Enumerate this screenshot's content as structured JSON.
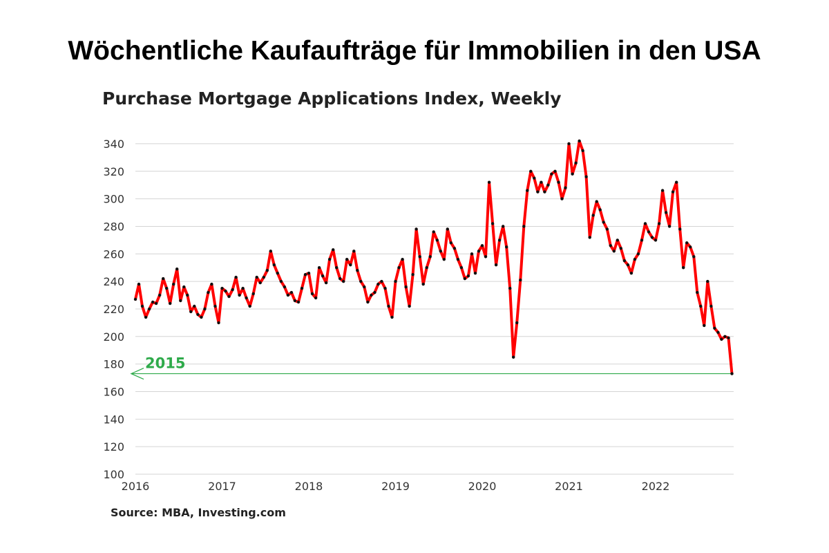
{
  "title": "Wöchentliche Kaufaufträge für Immobilien in den USA",
  "source": "Source: MBA, Investing.com",
  "chart_data": {
    "type": "line",
    "title": "Purchase Mortgage Applications Index, Weekly",
    "xlabel": "",
    "ylabel": "",
    "ylim": [
      100,
      350
    ],
    "xlim": [
      2016,
      2022.9
    ],
    "yticks": [
      100,
      120,
      140,
      160,
      180,
      200,
      220,
      240,
      260,
      280,
      300,
      320,
      340
    ],
    "xticks": [
      2016,
      2017,
      2018,
      2019,
      2020,
      2021,
      2022
    ],
    "grid": "horizontal",
    "colors": {
      "line": "#ff0000",
      "marker": "#111111",
      "reference": "#2eaa4a"
    },
    "reference_line": {
      "label": "2015",
      "y": 173
    },
    "series": [
      {
        "x": [
          2016.0,
          2016.04,
          2016.08,
          2016.12,
          2016.16,
          2016.2,
          2016.24,
          2016.28,
          2016.32,
          2016.36,
          2016.4,
          2016.44,
          2016.48,
          2016.52,
          2016.56,
          2016.6,
          2016.64,
          2016.68,
          2016.72,
          2016.76,
          2016.8,
          2016.84,
          2016.88,
          2016.92,
          2016.96,
          2017.0,
          2017.04,
          2017.08,
          2017.12,
          2017.16,
          2017.2,
          2017.24,
          2017.28,
          2017.32,
          2017.36,
          2017.4,
          2017.44,
          2017.48,
          2017.52,
          2017.56,
          2017.6,
          2017.64,
          2017.68,
          2017.72,
          2017.76,
          2017.8,
          2017.84,
          2017.88,
          2017.92,
          2017.96,
          2018.0,
          2018.04,
          2018.08,
          2018.12,
          2018.16,
          2018.2,
          2018.24,
          2018.28,
          2018.32,
          2018.36,
          2018.4,
          2018.44,
          2018.48,
          2018.52,
          2018.56,
          2018.6,
          2018.64,
          2018.68,
          2018.72,
          2018.76,
          2018.8,
          2018.84,
          2018.88,
          2018.92,
          2018.96,
          2019.0,
          2019.04,
          2019.08,
          2019.12,
          2019.16,
          2019.2,
          2019.24,
          2019.28,
          2019.32,
          2019.36,
          2019.4,
          2019.44,
          2019.48,
          2019.52,
          2019.56,
          2019.6,
          2019.64,
          2019.68,
          2019.72,
          2019.76,
          2019.8,
          2019.84,
          2019.88,
          2019.92,
          2019.96,
          2020.0,
          2020.04,
          2020.08,
          2020.12,
          2020.16,
          2020.2,
          2020.24,
          2020.28,
          2020.32,
          2020.36,
          2020.4,
          2020.44,
          2020.48,
          2020.52,
          2020.56,
          2020.6,
          2020.64,
          2020.68,
          2020.72,
          2020.76,
          2020.8,
          2020.84,
          2020.88,
          2020.92,
          2020.96,
          2021.0,
          2021.04,
          2021.08,
          2021.12,
          2021.16,
          2021.2,
          2021.24,
          2021.28,
          2021.32,
          2021.36,
          2021.4,
          2021.44,
          2021.48,
          2021.52,
          2021.56,
          2021.6,
          2021.64,
          2021.68,
          2021.72,
          2021.76,
          2021.8,
          2021.84,
          2021.88,
          2021.92,
          2021.96,
          2022.0,
          2022.04,
          2022.08,
          2022.12,
          2022.16,
          2022.2,
          2022.24,
          2022.28,
          2022.32,
          2022.36,
          2022.4,
          2022.44,
          2022.48,
          2022.52,
          2022.56,
          2022.6,
          2022.64,
          2022.68,
          2022.72,
          2022.76,
          2022.8,
          2022.84,
          2022.88
        ],
        "values": [
          227,
          238,
          222,
          214,
          220,
          225,
          224,
          230,
          242,
          235,
          224,
          238,
          249,
          226,
          236,
          230,
          218,
          222,
          216,
          214,
          220,
          232,
          238,
          222,
          210,
          235,
          233,
          229,
          234,
          243,
          230,
          235,
          228,
          222,
          231,
          243,
          239,
          243,
          248,
          262,
          252,
          246,
          240,
          236,
          230,
          232,
          226,
          225,
          235,
          245,
          246,
          231,
          228,
          250,
          244,
          239,
          256,
          263,
          250,
          242,
          240,
          256,
          252,
          262,
          248,
          240,
          236,
          225,
          230,
          232,
          238,
          240,
          235,
          222,
          214,
          240,
          250,
          256,
          236,
          222,
          245,
          278,
          258,
          238,
          250,
          258,
          276,
          270,
          262,
          256,
          278,
          268,
          264,
          256,
          250,
          242,
          244,
          260,
          246,
          262,
          266,
          258,
          312,
          282,
          252,
          270,
          280,
          265,
          235,
          185,
          210,
          241,
          280,
          306,
          320,
          315,
          305,
          312,
          305,
          310,
          318,
          320,
          312,
          300,
          308,
          340,
          318,
          326,
          342,
          335,
          316,
          272,
          288,
          298,
          292,
          283,
          278,
          266,
          262,
          270,
          264,
          255,
          252,
          246,
          256,
          260,
          270,
          282,
          276,
          272,
          270,
          282,
          306,
          290,
          280,
          305,
          312,
          278,
          250,
          268,
          265,
          258,
          232,
          222,
          208,
          240,
          222,
          206,
          203,
          198,
          200,
          199,
          173
        ]
      }
    ]
  }
}
